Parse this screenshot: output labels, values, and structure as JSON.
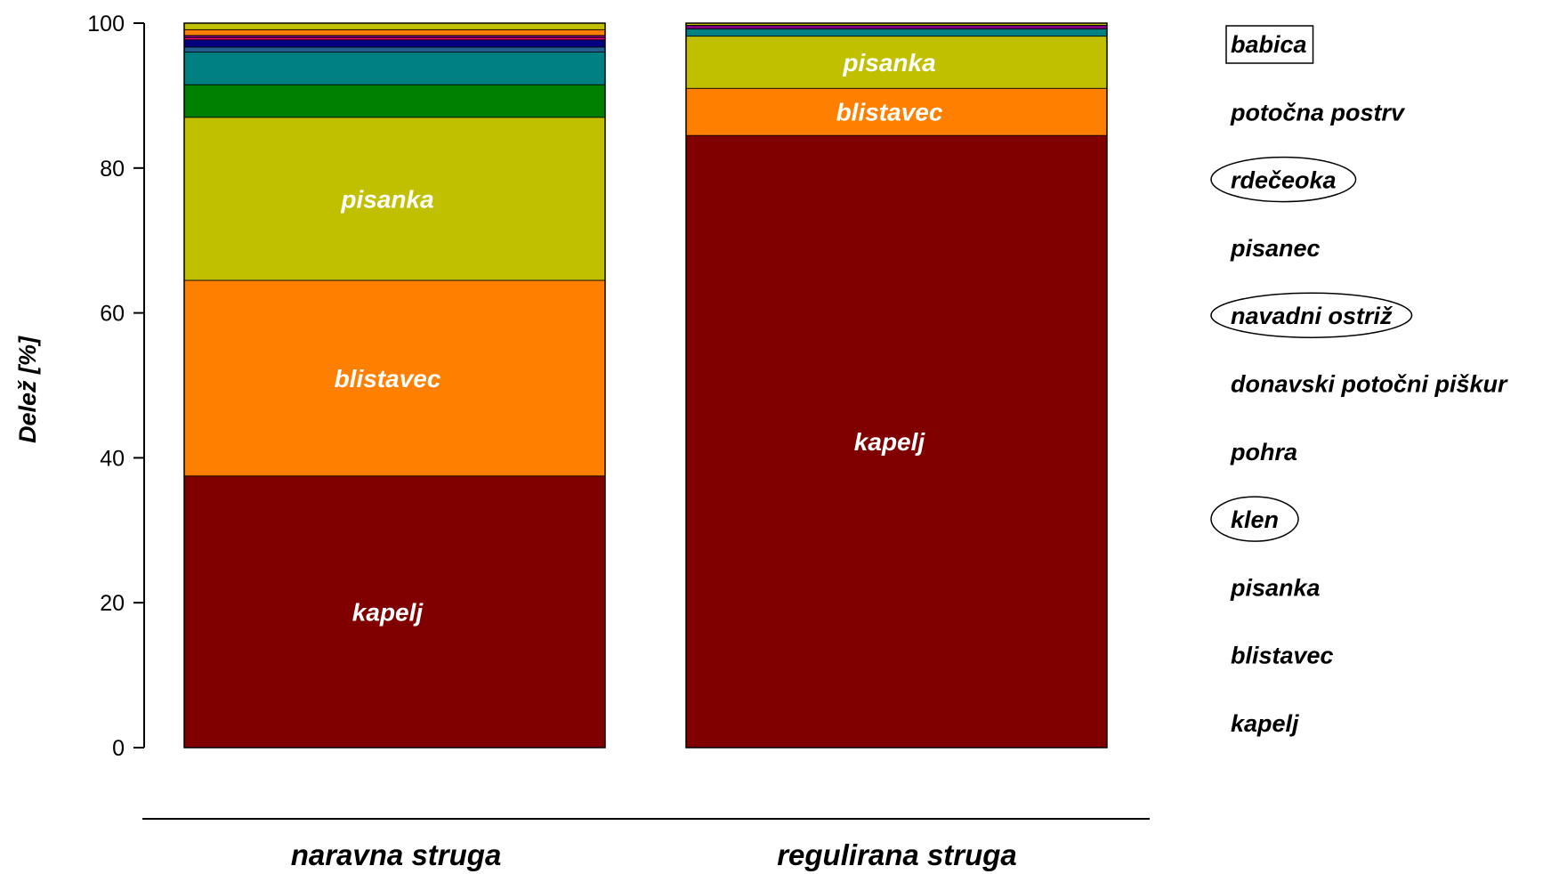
{
  "chart_data": {
    "type": "bar",
    "stacked": true,
    "ylabel": "Delež [%]",
    "ylim": [
      0,
      100
    ],
    "yticks": [
      "0",
      "20",
      "40",
      "60",
      "80",
      "100"
    ],
    "categories": [
      "naravna struga",
      "regulirana struga"
    ],
    "series": [
      {
        "name": "kapelj",
        "color": "#800000",
        "values": [
          37.5,
          84.5
        ]
      },
      {
        "name": "blistavec",
        "color": "#ff8000",
        "values": [
          27.0,
          6.5
        ]
      },
      {
        "name": "pisanka",
        "color": "#c0c000",
        "values": [
          22.5,
          7.2
        ]
      },
      {
        "name": "klen",
        "color": "#008000",
        "values": [
          4.5,
          0.0
        ]
      },
      {
        "name": "pisanec",
        "color": "#008080",
        "values": [
          4.5,
          1.0
        ]
      },
      {
        "name": "pohra",
        "color": "#1f5f8f",
        "values": [
          0.7,
          0.0
        ]
      },
      {
        "name": "donavski potočni piškur",
        "color": "#000080",
        "values": [
          1.0,
          0.0
        ]
      },
      {
        "name": "navadni ostriž",
        "color": "#ff0080",
        "values": [
          0.3,
          0.0
        ]
      },
      {
        "name": "rdečeoka",
        "color": "#800080",
        "values": [
          0.3,
          0.5
        ]
      },
      {
        "name": "potočna postrv",
        "color": "#ff8000",
        "values": [
          0.8,
          0.0
        ]
      },
      {
        "name": "babica",
        "color": "#c0c000",
        "values": [
          0.9,
          0.3
        ]
      }
    ],
    "segment_labels": {
      "naravna struga": [
        "kapelj",
        "blistavec",
        "pisanka"
      ],
      "regulirana struga": [
        "kapelj",
        "blistavec",
        "pisanka"
      ]
    },
    "legend": {
      "placement": "right",
      "items": [
        {
          "label": "babica",
          "mark": "box"
        },
        {
          "label": "potočna postrv",
          "mark": "none"
        },
        {
          "label": "rdečeoka",
          "mark": "ellipse"
        },
        {
          "label": "pisanec",
          "mark": "none"
        },
        {
          "label": "navadni ostriž",
          "mark": "ellipse"
        },
        {
          "label": "donavski potočni piškur",
          "mark": "none"
        },
        {
          "label": "pohra",
          "mark": "none"
        },
        {
          "label": "klen",
          "mark": "ellipse"
        },
        {
          "label": "pisanka",
          "mark": "none"
        },
        {
          "label": "blistavec",
          "mark": "none"
        },
        {
          "label": "kapelj",
          "mark": "none"
        }
      ]
    }
  }
}
